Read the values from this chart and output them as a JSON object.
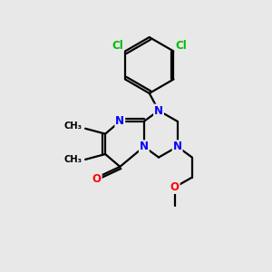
{
  "bg_color": "#e8e8e8",
  "bond_color": "#000000",
  "bond_width": 1.6,
  "N_color": "#0000ff",
  "O_color": "#ff0000",
  "Cl_color": "#00bb00",
  "font_size_atom": 8.5,
  "fig_size": [
    3.0,
    3.0
  ],
  "dpi": 100,
  "xlim": [
    0,
    10
  ],
  "ylim": [
    0,
    10
  ]
}
